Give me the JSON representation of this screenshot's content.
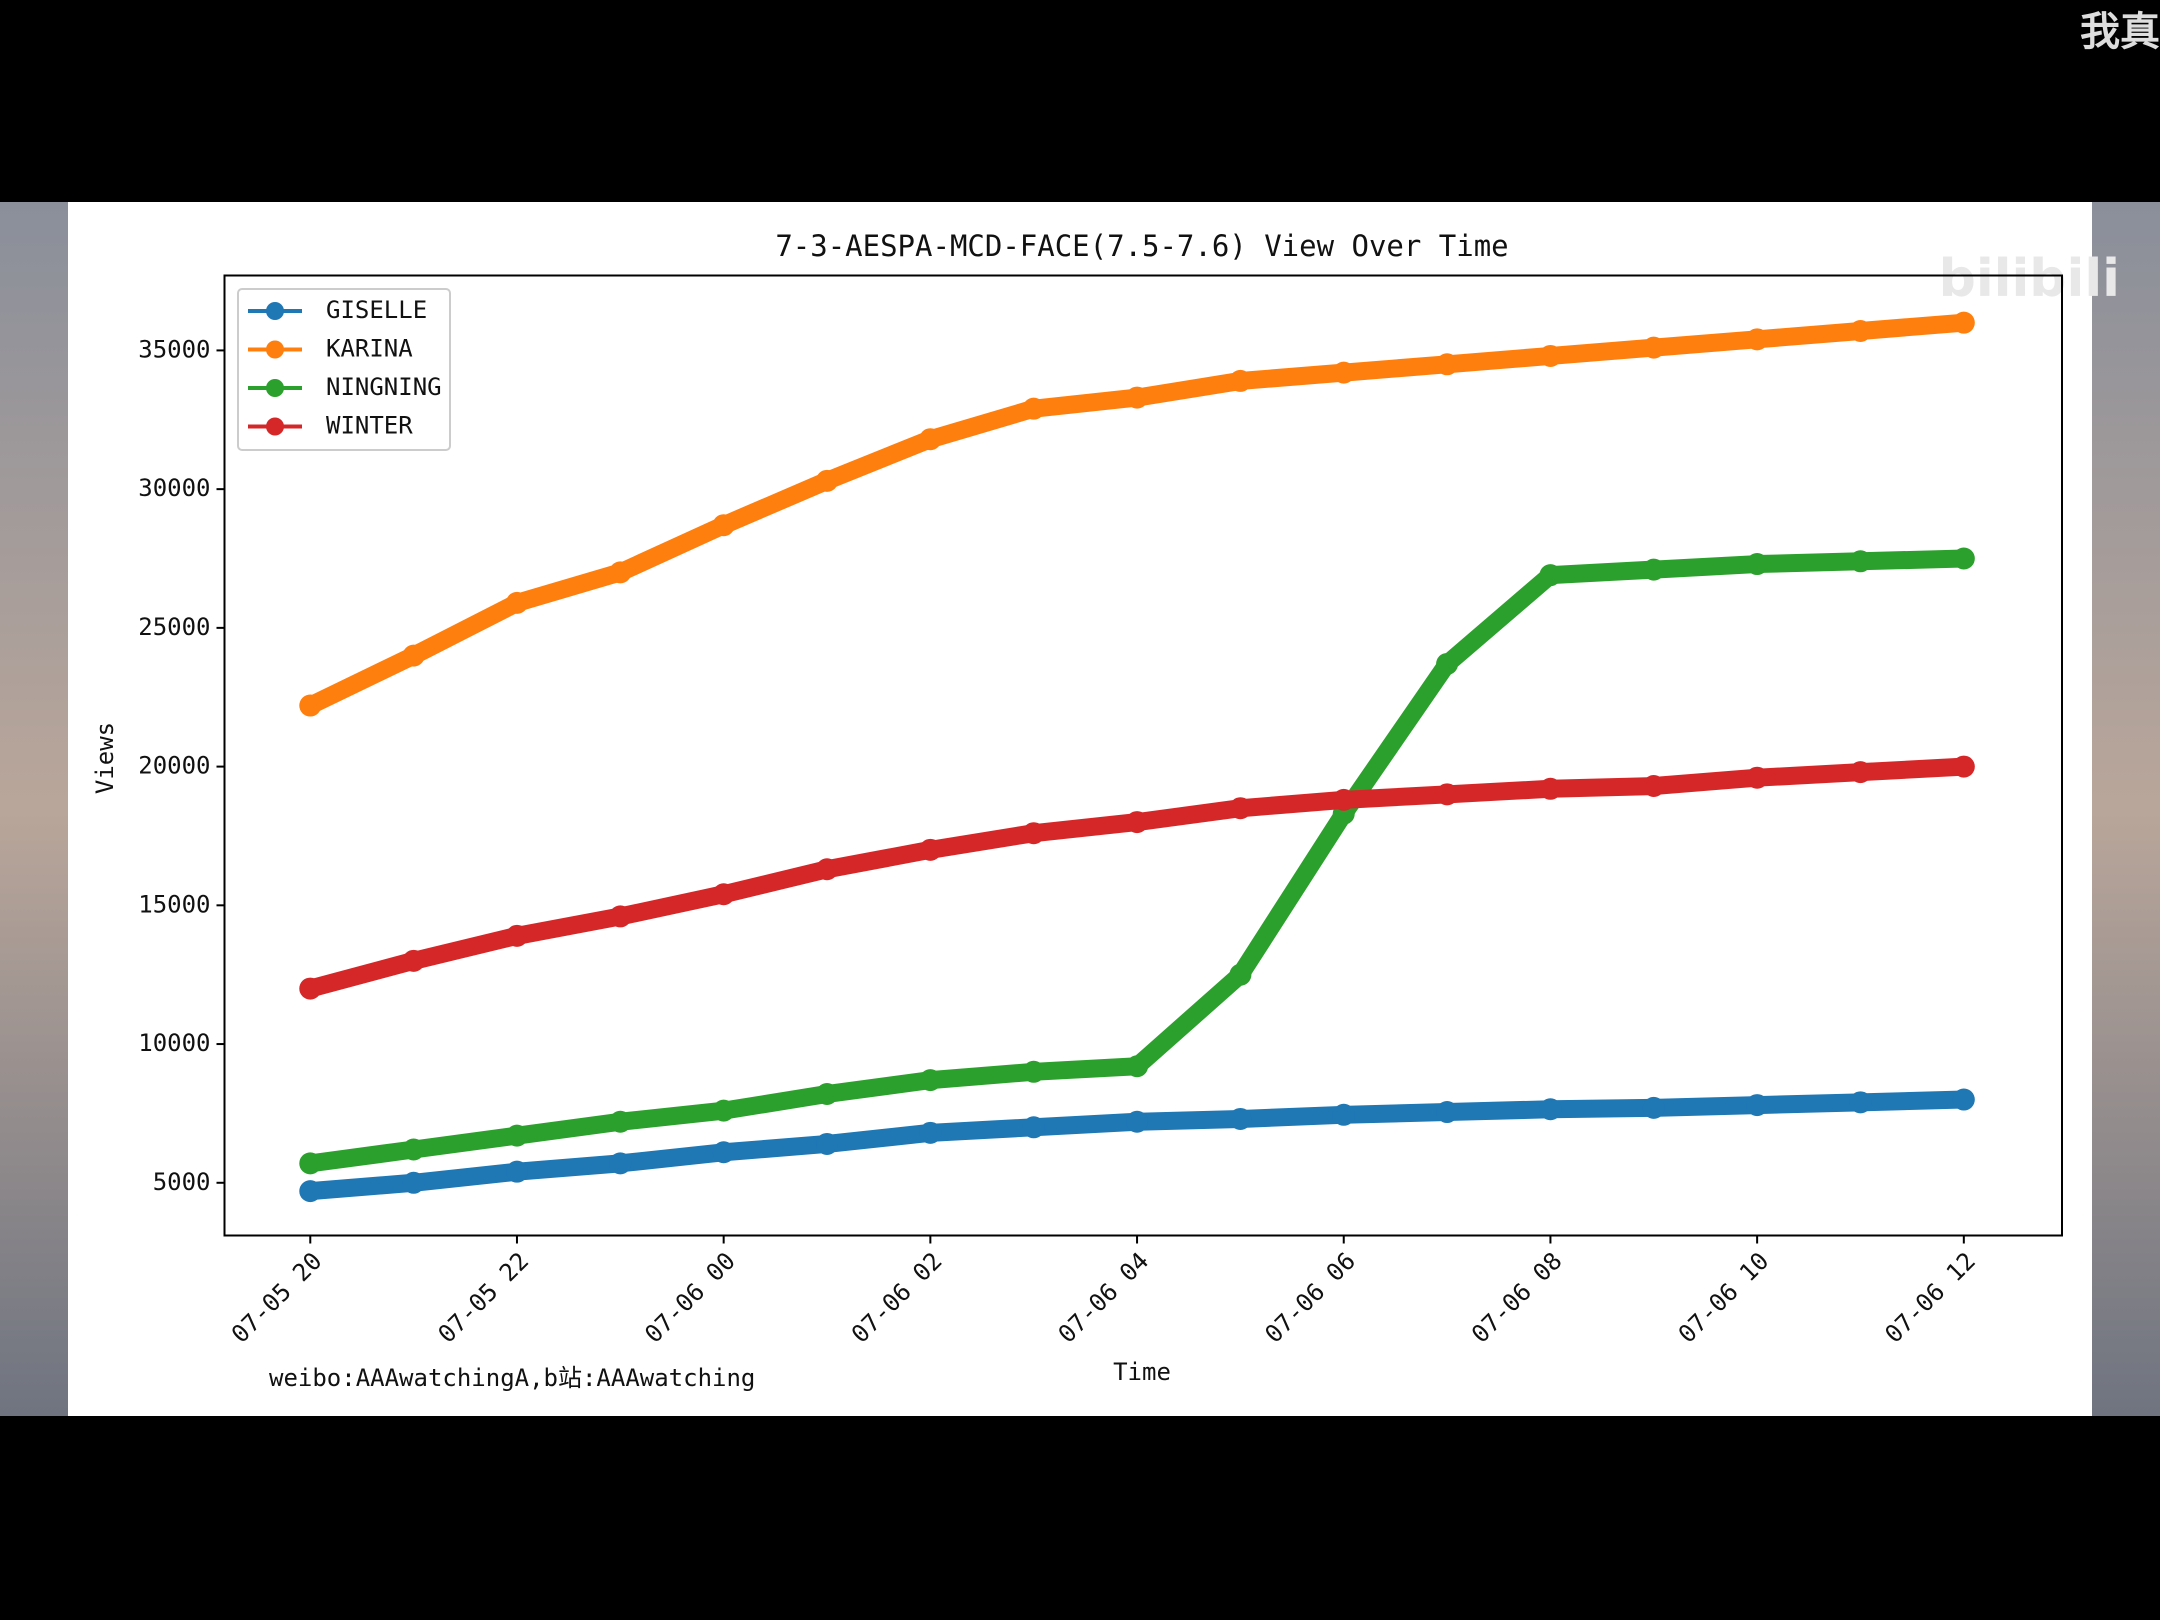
{
  "overlay_text": "我真",
  "watermark": "bilibili",
  "chart_data": {
    "type": "line",
    "title": "7-3-AESPA-MCD-FACE(7.5-7.6) View Over Time",
    "x_label": "Time",
    "y_label": "Views",
    "footnote": "weibo:AAAwatchingA,b站:AAAwatching",
    "categories": [
      "07-05 20",
      null,
      "07-05 22",
      null,
      "07-06 00",
      null,
      "07-06 02",
      null,
      "07-06 04",
      null,
      "07-06 06",
      null,
      "07-06 08",
      null,
      "07-06 10",
      null,
      "07-06 12"
    ],
    "series": [
      {
        "name": "GISELLE",
        "color": "#1f77b4",
        "values": [
          4700,
          5000,
          5400,
          5700,
          6100,
          6400,
          6800,
          7000,
          7200,
          7300,
          7450,
          7550,
          7650,
          7700,
          7800,
          7900,
          8000
        ]
      },
      {
        "name": "KARINA",
        "color": "#ff7f0e",
        "values": [
          22200,
          24000,
          25900,
          27000,
          28700,
          30300,
          31800,
          32900,
          33300,
          33900,
          34200,
          34500,
          34800,
          35100,
          35400,
          35700,
          36000
        ]
      },
      {
        "name": "NINGNING",
        "color": "#2ca02c",
        "values": [
          5700,
          6200,
          6700,
          7200,
          7600,
          8200,
          8700,
          9000,
          9200,
          12500,
          18300,
          23700,
          26900,
          27100,
          27300,
          27400,
          27500
        ]
      },
      {
        "name": "WINTER",
        "color": "#d62728",
        "values": [
          12000,
          13000,
          13900,
          14600,
          15400,
          16300,
          17000,
          17600,
          18000,
          18500,
          18800,
          19000,
          19200,
          19300,
          19600,
          19800,
          20000
        ]
      }
    ],
    "ylim": [
      3100,
      37700
    ],
    "yticks": [
      5000,
      10000,
      15000,
      20000,
      25000,
      30000,
      35000
    ],
    "legend": "upper left",
    "grid": false
  }
}
